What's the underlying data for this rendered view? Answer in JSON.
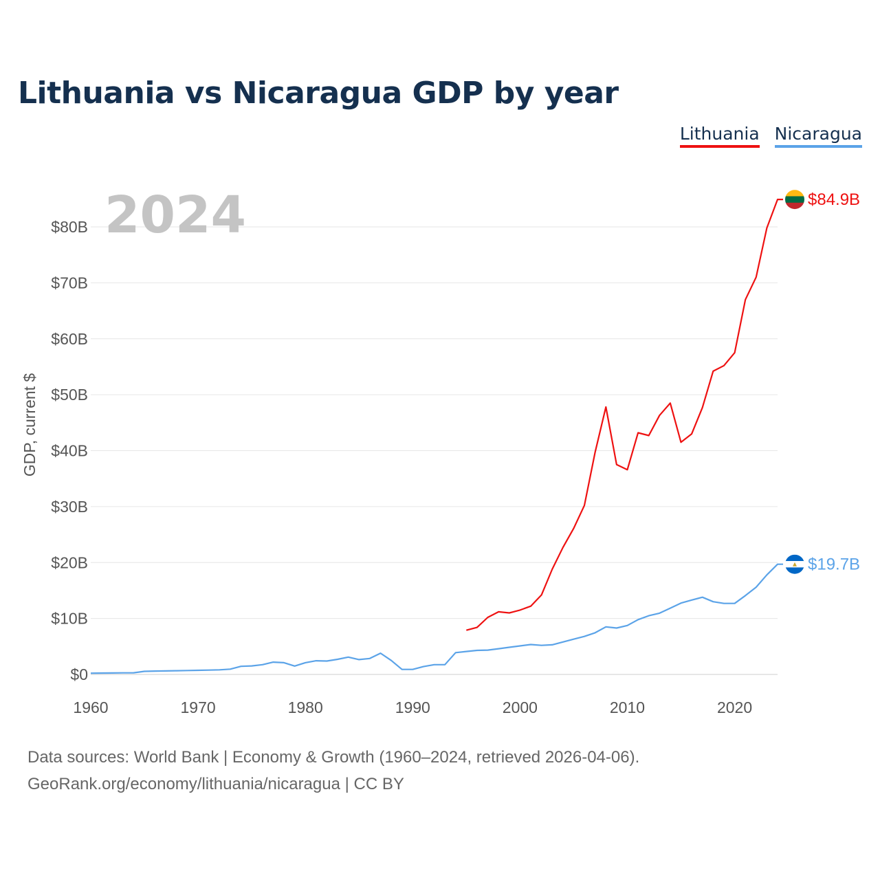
{
  "title": "Lithuania vs Nicaragua GDP by year",
  "footer": {
    "line1": "Data sources: World Bank | Economy & Growth (1960–2024, retrieved 2026-04-06).",
    "line2": "GeoRank.org/economy/lithuania/nicaragua | CC BY"
  },
  "chart_data": {
    "type": "line",
    "title": "Lithuania vs Nicaragua GDP by year",
    "year_overlay": "2024",
    "ylabel": "GDP, current $",
    "xlabel": "",
    "xlim": [
      1960,
      2024
    ],
    "ylim": [
      0,
      85
    ],
    "y_unit": "billion USD",
    "x_ticks": [
      1960,
      1970,
      1980,
      1990,
      2000,
      2010,
      2020
    ],
    "y_ticks": [
      {
        "value": 0,
        "label": "$0"
      },
      {
        "value": 10,
        "label": "$10B"
      },
      {
        "value": 20,
        "label": "$20B"
      },
      {
        "value": 30,
        "label": "$30B"
      },
      {
        "value": 40,
        "label": "$40B"
      },
      {
        "value": 50,
        "label": "$50B"
      },
      {
        "value": 60,
        "label": "$60B"
      },
      {
        "value": 70,
        "label": "$70B"
      },
      {
        "value": 80,
        "label": "$80B"
      }
    ],
    "grid": true,
    "legend": "top-right",
    "series": [
      {
        "name": "Lithuania",
        "color": "#ee1111",
        "end_label": "$84.9B",
        "flag": [
          "#fdb913",
          "#006a44",
          "#c1272d"
        ],
        "x": [
          1995,
          1996,
          1997,
          1998,
          1999,
          2000,
          2001,
          2002,
          2003,
          2004,
          2005,
          2006,
          2007,
          2008,
          2009,
          2010,
          2011,
          2012,
          2013,
          2014,
          2015,
          2016,
          2017,
          2018,
          2019,
          2020,
          2021,
          2022,
          2023,
          2024
        ],
        "values": [
          7.9,
          8.4,
          10.2,
          11.2,
          11.0,
          11.5,
          12.2,
          14.2,
          18.8,
          22.7,
          26.1,
          30.2,
          39.7,
          47.8,
          37.5,
          36.6,
          43.2,
          42.7,
          46.3,
          48.5,
          41.5,
          43.0,
          47.7,
          54.2,
          55.2,
          57.5,
          67.0,
          71.0,
          79.8,
          84.9
        ]
      },
      {
        "name": "Nicaragua",
        "color": "#5ba3e8",
        "end_label": "$19.7B",
        "flag": [
          "#0067c6",
          "#ffffff",
          "#0067c6"
        ],
        "x": [
          1960,
          1961,
          1962,
          1963,
          1964,
          1965,
          1966,
          1967,
          1968,
          1969,
          1970,
          1971,
          1972,
          1973,
          1974,
          1975,
          1976,
          1977,
          1978,
          1979,
          1980,
          1981,
          1982,
          1983,
          1984,
          1985,
          1986,
          1987,
          1988,
          1989,
          1990,
          1991,
          1992,
          1993,
          1994,
          1995,
          1996,
          1997,
          1998,
          1999,
          2000,
          2001,
          2002,
          2003,
          2004,
          2005,
          2006,
          2007,
          2008,
          2009,
          2010,
          2011,
          2012,
          2013,
          2014,
          2015,
          2016,
          2017,
          2018,
          2019,
          2020,
          2021,
          2022,
          2023,
          2024
        ],
        "values": [
          0.22,
          0.24,
          0.26,
          0.28,
          0.3,
          0.55,
          0.6,
          0.63,
          0.66,
          0.7,
          0.74,
          0.78,
          0.82,
          0.95,
          1.45,
          1.52,
          1.75,
          2.2,
          2.1,
          1.5,
          2.1,
          2.45,
          2.4,
          2.7,
          3.1,
          2.65,
          2.85,
          3.8,
          2.5,
          0.9,
          0.9,
          1.4,
          1.75,
          1.75,
          3.9,
          4.1,
          4.3,
          4.35,
          4.6,
          4.85,
          5.1,
          5.35,
          5.2,
          5.3,
          5.8,
          6.3,
          6.8,
          7.45,
          8.5,
          8.3,
          8.75,
          9.8,
          10.5,
          10.95,
          11.85,
          12.75,
          13.3,
          13.8,
          13.0,
          12.7,
          12.7,
          14.1,
          15.6,
          17.8,
          19.7
        ]
      }
    ]
  }
}
